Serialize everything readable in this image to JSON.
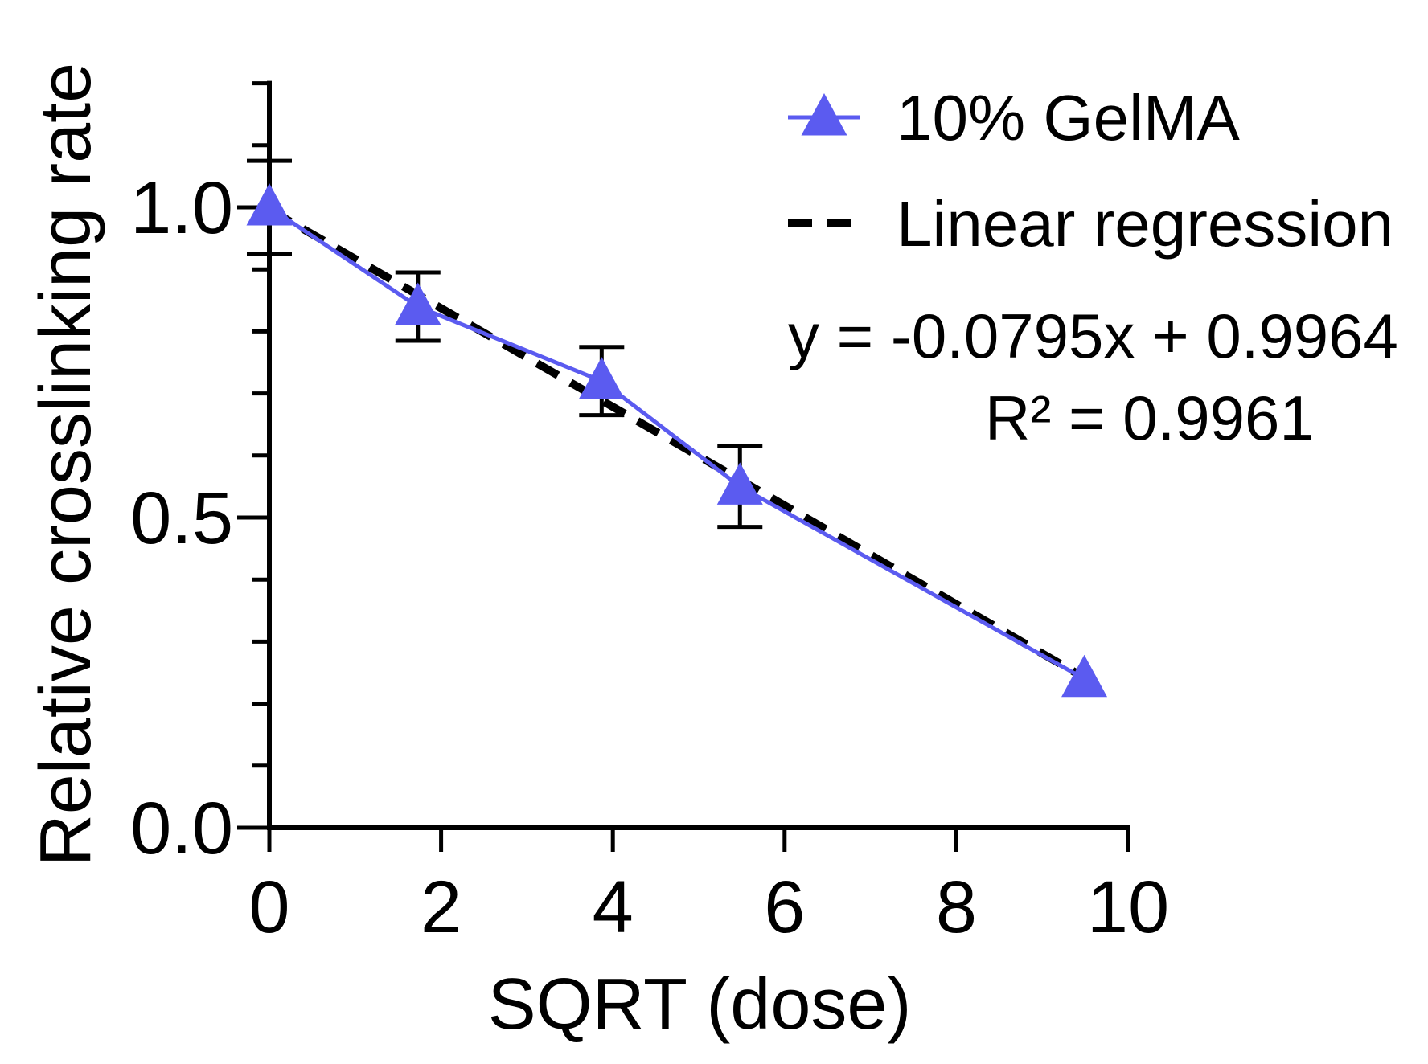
{
  "chart_data": {
    "type": "line",
    "title": "",
    "xlabel": "SQRT (dose)",
    "ylabel": "Relative crosslinking rate",
    "xlim": [
      0,
      10
    ],
    "ylim": [
      0,
      1.2
    ],
    "x_ticks": [
      0,
      2,
      4,
      6,
      8,
      10
    ],
    "x_tick_labels": [
      "0",
      "2",
      "4",
      "6",
      "8",
      "10"
    ],
    "y_major_ticks": [
      0,
      0.5,
      1.0
    ],
    "y_tick_labels": [
      "0.0",
      "0.5",
      "1.0"
    ],
    "y_minor_step": 0.1,
    "legend_position": "top-right",
    "series": [
      {
        "name": "10% GelMA",
        "color": "#5b5bf0",
        "marker": "triangle",
        "x": [
          0,
          1.73,
          3.87,
          5.48,
          9.49
        ],
        "y": [
          1.0,
          0.84,
          0.72,
          0.55,
          0.24
        ],
        "error": [
          0.075,
          0.055,
          0.055,
          0.065,
          0.0
        ]
      }
    ],
    "regression": {
      "name": "Linear regression",
      "slope": -0.0795,
      "intercept": 0.9964,
      "x_range": [
        0,
        9.49
      ],
      "color": "#000000",
      "equation": "y = -0.0795x + 0.9964",
      "r_squared": "R² = 0.9961"
    }
  }
}
